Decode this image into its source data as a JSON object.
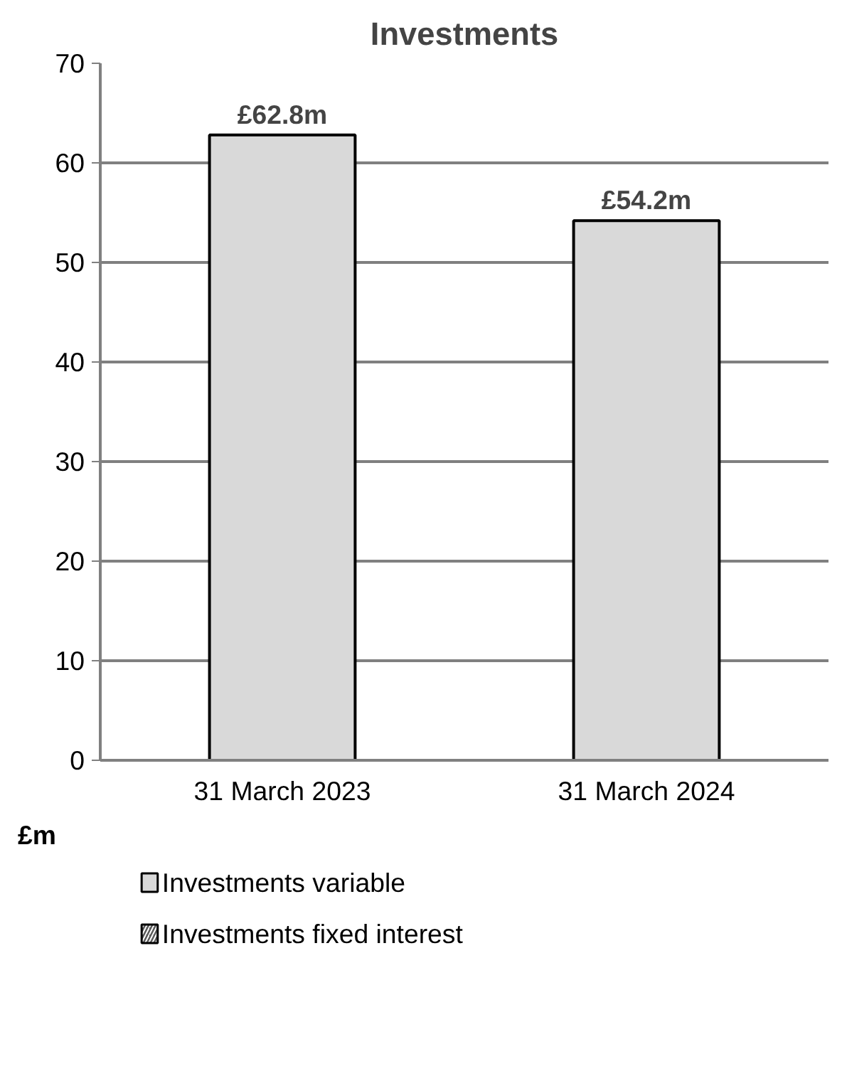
{
  "chart_data": {
    "type": "bar",
    "title": "Investments",
    "ylabel": "£m",
    "categories": [
      "31 March 2023",
      "31 March 2024"
    ],
    "series": [
      {
        "name": "Investments variable",
        "color": "#d9d9d9",
        "values": [
          62.8,
          54.2
        ],
        "value_labels": [
          "£62.8m",
          "£54.2m"
        ]
      },
      {
        "name": "Investments fixed interest",
        "color": "#595959",
        "values": [
          null,
          null
        ]
      }
    ],
    "stacked": true,
    "ylim": [
      0,
      70
    ],
    "yticks": [
      0,
      10,
      20,
      30,
      40,
      50,
      60,
      70
    ],
    "grid": "y",
    "legend": "bottom"
  }
}
